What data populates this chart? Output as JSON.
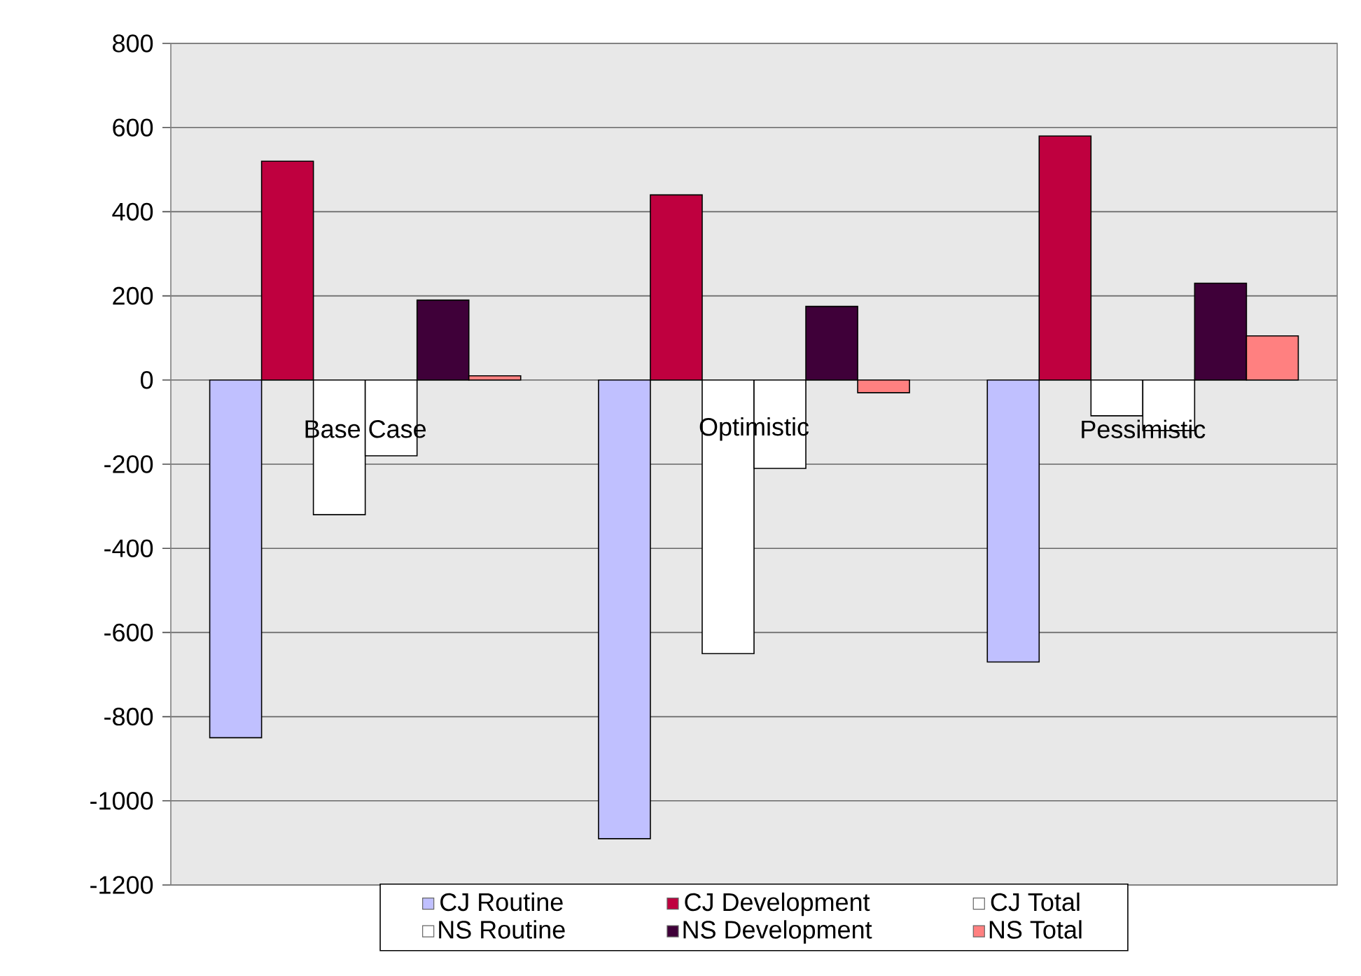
{
  "chart_data": {
    "type": "bar",
    "categories": [
      "Base Case",
      "Optimistic",
      "Pessimistic"
    ],
    "series": [
      {
        "name": "CJ Routine",
        "color": "#c0c0ff",
        "values": [
          -850,
          -1090,
          -670
        ]
      },
      {
        "name": "CJ Development",
        "color": "#bf003f",
        "values": [
          520,
          440,
          580
        ]
      },
      {
        "name": "CJ Total",
        "color": "#ffffff",
        "values": [
          -320,
          -650,
          -85
        ]
      },
      {
        "name": "NS Routine",
        "color": "#ffffff",
        "values": [
          -180,
          -210,
          -120
        ]
      },
      {
        "name": "NS Development",
        "color": "#3f0039",
        "values": [
          190,
          175,
          230
        ]
      },
      {
        "name": "NS Total",
        "color": "#ff8080",
        "values": [
          10,
          -30,
          105
        ]
      }
    ],
    "ylim": [
      -1200,
      800
    ],
    "yticks": [
      -1200,
      -1000,
      -800,
      -600,
      -400,
      -200,
      0,
      200,
      400,
      600,
      800
    ],
    "grid": "y",
    "legend": "bottom"
  }
}
